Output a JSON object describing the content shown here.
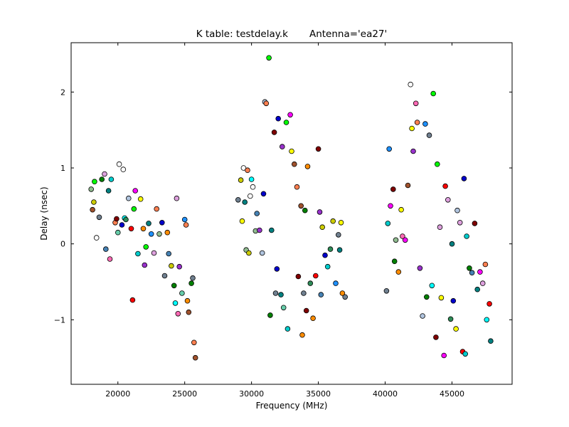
{
  "chart_data": {
    "type": "scatter",
    "title": "K table: testdelay.k       Antenna='ea27'",
    "xlabel": "Frequency (MHz)",
    "ylabel": "Delay (nsec)",
    "xlim": [
      16500,
      49500
    ],
    "ylim": [
      -1.85,
      2.65
    ],
    "xticks": [
      20000,
      25000,
      30000,
      35000,
      40000,
      45000
    ],
    "yticks": [
      -1,
      0,
      1,
      2
    ],
    "ytick_labels": [
      "−1",
      "0",
      "1",
      "2"
    ],
    "grid": false,
    "marker_edge_color": "#000000",
    "palette": [
      "#ffffff",
      "#00ff00",
      "#0000cc",
      "#00cccc",
      "#ff0000",
      "#ff00ff",
      "#cccc00",
      "#800000",
      "#008000",
      "#008080",
      "#66cdaa",
      "#dda0dd",
      "#ff8c00",
      "#4682b4",
      "#b0c4de",
      "#9932cc",
      "#ff7f50",
      "#2e8b57",
      "#ffff00",
      "#a0522d",
      "#708090",
      "#00ffff",
      "#8fbc8f",
      "#ff69b4",
      "#1e90ff"
    ],
    "points": [
      [
        18000,
        0.72,
        22
      ],
      [
        18100,
        0.45,
        19
      ],
      [
        18200,
        0.55,
        6
      ],
      [
        18250,
        0.82,
        1
      ],
      [
        18400,
        0.08,
        0
      ],
      [
        18600,
        0.35,
        20
      ],
      [
        18800,
        0.85,
        8
      ],
      [
        19000,
        0.92,
        11
      ],
      [
        19100,
        -0.07,
        13
      ],
      [
        19300,
        0.7,
        9
      ],
      [
        19400,
        -0.2,
        23
      ],
      [
        19500,
        0.85,
        3
      ],
      [
        19800,
        0.28,
        16
      ],
      [
        19900,
        0.33,
        7
      ],
      [
        20000,
        0.15,
        10
      ],
      [
        20100,
        1.05,
        0
      ],
      [
        20300,
        0.25,
        2
      ],
      [
        20400,
        0.98,
        0
      ],
      [
        20500,
        0.34,
        21
      ],
      [
        20600,
        0.32,
        17
      ],
      [
        20800,
        0.6,
        14
      ],
      [
        21000,
        0.2,
        4
      ],
      [
        21100,
        -0.74,
        4
      ],
      [
        21200,
        0.46,
        1
      ],
      [
        21300,
        0.7,
        5
      ],
      [
        21500,
        -0.13,
        3
      ],
      [
        21700,
        0.59,
        18
      ],
      [
        21900,
        0.2,
        12
      ],
      [
        22000,
        -0.28,
        15
      ],
      [
        22100,
        -0.04,
        1
      ],
      [
        22300,
        0.27,
        9
      ],
      [
        22500,
        0.13,
        24
      ],
      [
        22700,
        -0.12,
        11
      ],
      [
        22900,
        0.46,
        16
      ],
      [
        23100,
        0.13,
        22
      ],
      [
        23300,
        0.28,
        2
      ],
      [
        23500,
        -0.42,
        20
      ],
      [
        23700,
        0.15,
        12
      ],
      [
        23800,
        -0.13,
        13
      ],
      [
        24000,
        -0.29,
        6
      ],
      [
        24200,
        -0.55,
        8
      ],
      [
        24300,
        -0.78,
        21
      ],
      [
        24400,
        0.6,
        11
      ],
      [
        24500,
        -0.92,
        23
      ],
      [
        24600,
        -0.3,
        15
      ],
      [
        24800,
        -0.65,
        10
      ],
      [
        25000,
        0.32,
        24
      ],
      [
        25100,
        0.25,
        16
      ],
      [
        25200,
        -0.75,
        12
      ],
      [
        25300,
        -0.9,
        19
      ],
      [
        25500,
        -0.52,
        8
      ],
      [
        25600,
        -0.45,
        20
      ],
      [
        25700,
        -1.3,
        16
      ],
      [
        25800,
        -1.5,
        19
      ],
      [
        29000,
        0.58,
        20
      ],
      [
        29200,
        0.84,
        6
      ],
      [
        29300,
        0.3,
        18
      ],
      [
        29400,
        1.0,
        0
      ],
      [
        29500,
        0.55,
        9
      ],
      [
        29600,
        -0.08,
        22
      ],
      [
        29700,
        0.97,
        16
      ],
      [
        29800,
        -0.12,
        6
      ],
      [
        29900,
        0.63,
        0
      ],
      [
        30000,
        0.85,
        21
      ],
      [
        30100,
        0.75,
        0
      ],
      [
        30300,
        0.17,
        22
      ],
      [
        30400,
        0.4,
        13
      ],
      [
        30600,
        0.18,
        15
      ],
      [
        30800,
        -0.12,
        14
      ],
      [
        30900,
        0.66,
        2
      ],
      [
        31000,
        1.87,
        14
      ],
      [
        31100,
        1.85,
        16
      ],
      [
        31300,
        2.45,
        1
      ],
      [
        31400,
        -0.94,
        8
      ],
      [
        31500,
        0.18,
        9
      ],
      [
        31700,
        1.47,
        7
      ],
      [
        31800,
        -0.65,
        20
      ],
      [
        31900,
        -0.33,
        2
      ],
      [
        32000,
        1.65,
        2
      ],
      [
        32200,
        -0.67,
        9
      ],
      [
        32300,
        1.28,
        15
      ],
      [
        32400,
        -0.84,
        10
      ],
      [
        32600,
        1.6,
        1
      ],
      [
        32700,
        -1.12,
        3
      ],
      [
        32900,
        1.7,
        5
      ],
      [
        33000,
        1.22,
        18
      ],
      [
        33200,
        1.05,
        19
      ],
      [
        33400,
        0.75,
        16
      ],
      [
        33500,
        -0.43,
        7
      ],
      [
        33700,
        0.5,
        19
      ],
      [
        33800,
        -1.2,
        12
      ],
      [
        33900,
        -0.65,
        20
      ],
      [
        34000,
        0.44,
        8
      ],
      [
        34100,
        -0.88,
        7
      ],
      [
        34200,
        1.02,
        12
      ],
      [
        34400,
        -0.52,
        17
      ],
      [
        34600,
        -0.98,
        12
      ],
      [
        34800,
        -0.42,
        4
      ],
      [
        35000,
        1.25,
        7
      ],
      [
        35100,
        0.42,
        15
      ],
      [
        35200,
        -0.67,
        13
      ],
      [
        35300,
        0.22,
        6
      ],
      [
        35500,
        -0.15,
        2
      ],
      [
        35700,
        -0.3,
        3
      ],
      [
        35900,
        -0.07,
        17
      ],
      [
        36100,
        0.3,
        6
      ],
      [
        36300,
        -0.52,
        24
      ],
      [
        36500,
        0.12,
        20
      ],
      [
        36600,
        -0.08,
        9
      ],
      [
        36700,
        0.28,
        18
      ],
      [
        36800,
        -0.65,
        12
      ],
      [
        37000,
        -0.7,
        20
      ],
      [
        40100,
        -0.62,
        20
      ],
      [
        40200,
        0.27,
        3
      ],
      [
        40300,
        1.25,
        24
      ],
      [
        40400,
        0.5,
        5
      ],
      [
        40600,
        0.72,
        7
      ],
      [
        40700,
        -0.23,
        8
      ],
      [
        40800,
        0.05,
        22
      ],
      [
        41000,
        -0.37,
        12
      ],
      [
        41200,
        0.45,
        18
      ],
      [
        41300,
        0.1,
        23
      ],
      [
        41500,
        0.05,
        5
      ],
      [
        41700,
        0.77,
        19
      ],
      [
        41900,
        2.1,
        0
      ],
      [
        42000,
        1.52,
        18
      ],
      [
        42100,
        1.22,
        15
      ],
      [
        42300,
        1.85,
        23
      ],
      [
        42400,
        1.6,
        16
      ],
      [
        42600,
        -0.32,
        15
      ],
      [
        42800,
        -0.95,
        14
      ],
      [
        43000,
        1.58,
        24
      ],
      [
        43100,
        -0.7,
        8
      ],
      [
        43300,
        1.43,
        20
      ],
      [
        43500,
        -0.55,
        21
      ],
      [
        43600,
        1.98,
        1
      ],
      [
        43800,
        -1.23,
        7
      ],
      [
        43900,
        1.05,
        1
      ],
      [
        44100,
        0.22,
        11
      ],
      [
        44200,
        -0.71,
        18
      ],
      [
        44400,
        -1.47,
        5
      ],
      [
        44500,
        0.76,
        4
      ],
      [
        44700,
        0.58,
        11
      ],
      [
        44900,
        -0.99,
        17
      ],
      [
        45000,
        0.0,
        9
      ],
      [
        45100,
        -0.75,
        2
      ],
      [
        45300,
        -1.12,
        18
      ],
      [
        45400,
        0.44,
        14
      ],
      [
        45600,
        0.28,
        11
      ],
      [
        45800,
        -1.42,
        4
      ],
      [
        45900,
        0.86,
        2
      ],
      [
        46000,
        -1.45,
        3
      ],
      [
        46100,
        0.1,
        3
      ],
      [
        46300,
        -0.32,
        8
      ],
      [
        46500,
        -0.38,
        13
      ],
      [
        46700,
        0.27,
        7
      ],
      [
        46900,
        -0.6,
        9
      ],
      [
        47100,
        -0.37,
        5
      ],
      [
        47300,
        -0.52,
        11
      ],
      [
        47500,
        -0.27,
        16
      ],
      [
        47600,
        -1.0,
        21
      ],
      [
        47800,
        -0.79,
        4
      ],
      [
        47900,
        -1.28,
        9
      ]
    ]
  }
}
